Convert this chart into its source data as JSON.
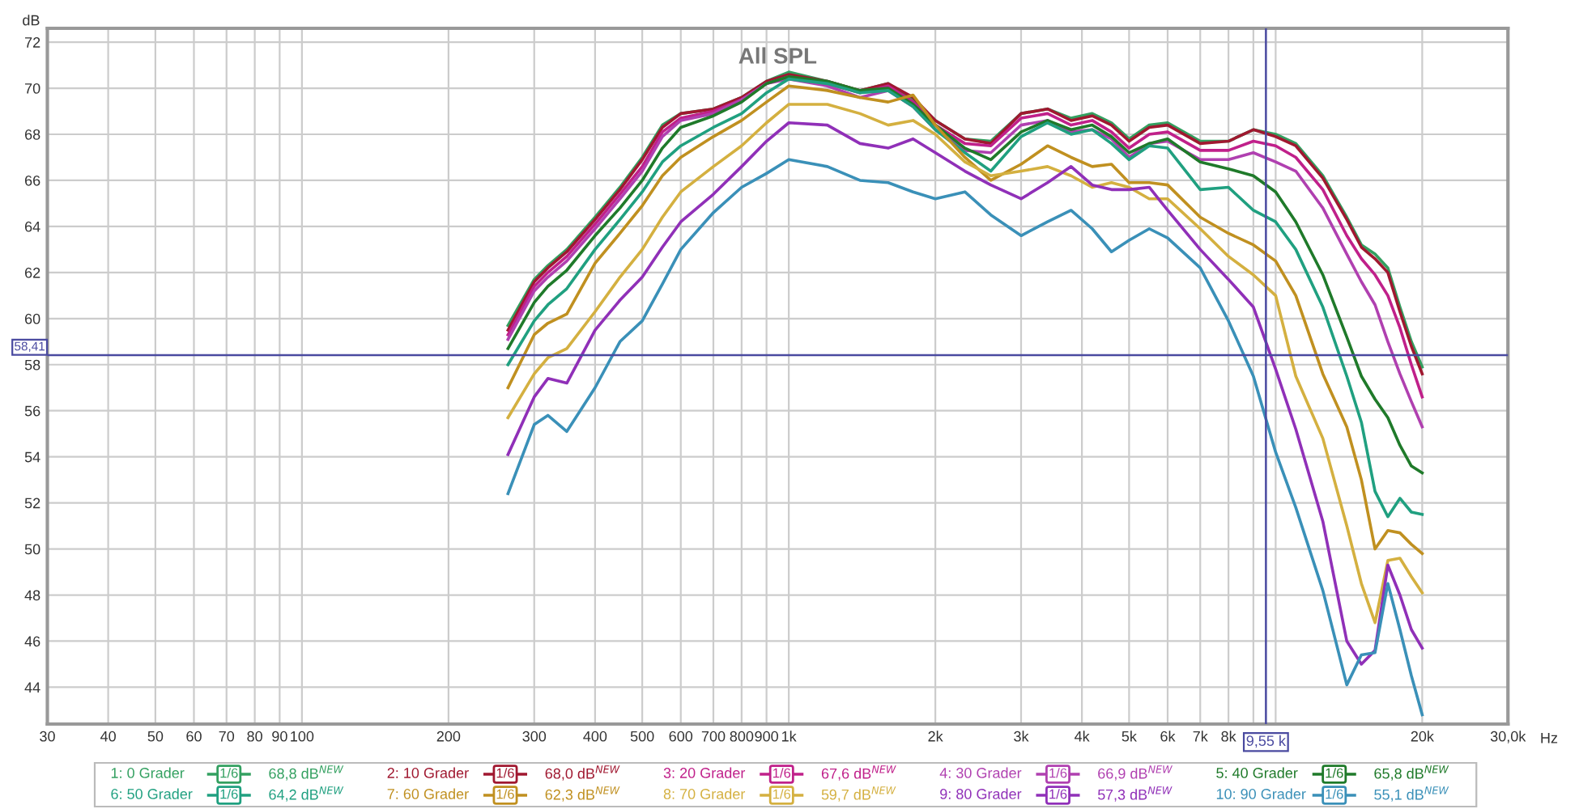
{
  "chart_data": {
    "type": "line",
    "title": "All SPL",
    "xlabel": "Hz",
    "ylabel": "dB",
    "log": "x",
    "grid": true,
    "legend": "bottom",
    "marker": "none",
    "line_style": "solid",
    "x": [
      265,
      300,
      320,
      350,
      400,
      450,
      500,
      550,
      600,
      700,
      800,
      900,
      1000,
      1200,
      1400,
      1600,
      1800,
      2000,
      2300,
      2600,
      3000,
      3400,
      3800,
      4200,
      4600,
      5000,
      5500,
      6000,
      7000,
      8000,
      9000,
      10000,
      11000,
      12500,
      14000,
      15000,
      16000,
      17000,
      18000,
      19000,
      20000
    ],
    "xlim": [
      30,
      30000
    ],
    "xticks": [
      30,
      40,
      50,
      60,
      70,
      80,
      90,
      100,
      200,
      300,
      400,
      500,
      600,
      700,
      800,
      900,
      {
        "value": 1000,
        "label": "1k"
      },
      {
        "value": 2000,
        "label": "2k"
      },
      {
        "value": 3000,
        "label": "3k"
      },
      {
        "value": 4000,
        "label": "4k"
      },
      {
        "value": 5000,
        "label": "5k"
      },
      {
        "value": 6000,
        "label": "6k"
      },
      {
        "value": 7000,
        "label": "7k"
      },
      {
        "value": 8000,
        "label": "8k"
      },
      {
        "value": 9000,
        "label": null
      },
      {
        "value": 10000,
        "label": null
      },
      {
        "value": 20000,
        "label": "20k"
      },
      {
        "value": 30000,
        "label": "30,0k"
      }
    ],
    "ylim": [
      42.4,
      72.6
    ],
    "yticks": [
      44,
      46,
      48,
      50,
      52,
      54,
      56,
      58,
      60,
      62,
      64,
      66,
      68,
      70,
      72
    ],
    "ref_lines": [
      {
        "axis": "x",
        "value": 9550,
        "label": "9,55 k",
        "color": "#4a4aa0"
      },
      {
        "axis": "y",
        "value": 58.41,
        "label": "58,41",
        "color": "#4a4aa0"
      }
    ],
    "annotations": [
      "1/6",
      "68,8 dB$^{NEW}$",
      "1/6",
      "68,0 dB$^{NEW}$",
      "1/6",
      "67,6 dB$^{NEW}$",
      "1/6",
      "66,9 dB$^{NEW}$",
      "1/6",
      "65,8 dB$^{NEW}$",
      "1/6",
      "64,2 dB$^{NEW}$",
      "1/6",
      "62,3 dB$^{NEW}$",
      "1/6",
      "59,7 dB$^{NEW}$",
      "1/6",
      "57,3 dB$^{NEW}$",
      "1/6",
      "55,1 dB$^{NEW}$"
    ],
    "series": [
      {
        "name": "1: 0 Grader",
        "color": "#33a060",
        "values": [
          59.7,
          61.7,
          62.3,
          63.0,
          64.4,
          65.7,
          67.0,
          68.4,
          68.9,
          69.1,
          69.6,
          70.3,
          70.7,
          70.3,
          69.9,
          70.2,
          69.5,
          68.6,
          67.8,
          67.7,
          68.9,
          69.1,
          68.7,
          68.9,
          68.5,
          67.8,
          68.4,
          68.5,
          67.7,
          67.7,
          68.2,
          68.0,
          67.6,
          66.2,
          64.4,
          63.2,
          62.8,
          62.2,
          60.5,
          59.0,
          57.9
        ]
      },
      {
        "name": "2: 10 Grader",
        "color": "#a01830",
        "values": [
          59.5,
          61.6,
          62.2,
          62.9,
          64.3,
          65.6,
          66.9,
          68.3,
          68.9,
          69.1,
          69.6,
          70.3,
          70.6,
          70.3,
          69.9,
          70.2,
          69.6,
          68.6,
          67.8,
          67.6,
          68.9,
          69.1,
          68.6,
          68.8,
          68.4,
          67.7,
          68.3,
          68.4,
          67.6,
          67.7,
          68.2,
          67.9,
          67.5,
          66.1,
          64.3,
          63.1,
          62.6,
          62.0,
          60.3,
          58.8,
          57.6
        ]
      },
      {
        "name": "3: 20 Grader",
        "color": "#c0208a",
        "values": [
          59.3,
          61.4,
          62.0,
          62.7,
          64.1,
          65.4,
          66.6,
          68.1,
          68.7,
          69.0,
          69.5,
          70.2,
          70.5,
          70.2,
          69.8,
          70.1,
          69.4,
          68.4,
          67.6,
          67.5,
          68.7,
          68.9,
          68.4,
          68.6,
          68.1,
          67.4,
          68.0,
          68.1,
          67.3,
          67.3,
          67.7,
          67.5,
          67.0,
          65.6,
          63.6,
          62.6,
          61.9,
          61.0,
          59.6,
          58.0,
          56.6
        ]
      },
      {
        "name": "4: 30 Grader",
        "color": "#b040b0",
        "values": [
          59.1,
          61.2,
          61.8,
          62.5,
          63.9,
          65.2,
          66.4,
          67.9,
          68.6,
          68.9,
          69.5,
          70.2,
          70.4,
          70.1,
          69.6,
          69.9,
          69.2,
          68.2,
          67.3,
          67.2,
          68.4,
          68.6,
          68.1,
          68.2,
          67.8,
          67.0,
          67.6,
          67.7,
          66.9,
          66.9,
          67.2,
          66.8,
          66.4,
          64.8,
          62.8,
          61.6,
          60.6,
          59.0,
          57.6,
          56.4,
          55.3
        ]
      },
      {
        "name": "5: 40 Grader",
        "color": "#1f7a2a",
        "values": [
          58.7,
          60.7,
          61.4,
          62.1,
          63.6,
          64.8,
          66.0,
          67.4,
          68.3,
          68.8,
          69.4,
          70.2,
          70.5,
          70.3,
          69.9,
          70.0,
          69.3,
          68.4,
          67.4,
          66.9,
          68.1,
          68.6,
          68.2,
          68.4,
          67.9,
          67.2,
          67.6,
          67.8,
          66.8,
          66.5,
          66.2,
          65.5,
          64.2,
          61.9,
          59.2,
          57.5,
          56.5,
          55.7,
          54.5,
          53.6,
          53.3
        ]
      },
      {
        "name": "6: 50 Grader",
        "color": "#20a080",
        "values": [
          58.0,
          59.9,
          60.6,
          61.3,
          63.0,
          64.3,
          65.5,
          66.8,
          67.5,
          68.3,
          68.9,
          69.8,
          70.4,
          70.2,
          69.8,
          69.9,
          69.2,
          68.2,
          67.2,
          66.4,
          67.9,
          68.5,
          68.0,
          68.2,
          67.6,
          66.9,
          67.5,
          67.4,
          65.6,
          65.7,
          64.7,
          64.2,
          63.0,
          60.5,
          57.5,
          55.5,
          52.5,
          51.4,
          52.2,
          51.6,
          51.5
        ]
      },
      {
        "name": "7: 60 Grader",
        "color": "#c09020",
        "values": [
          57.0,
          59.3,
          59.8,
          60.2,
          62.4,
          63.7,
          64.9,
          66.2,
          67.0,
          67.9,
          68.6,
          69.4,
          70.1,
          69.9,
          69.6,
          69.4,
          69.7,
          68.4,
          67.0,
          66.0,
          66.7,
          67.5,
          67.0,
          66.6,
          66.7,
          65.9,
          65.9,
          65.8,
          64.4,
          63.7,
          63.2,
          62.5,
          61.0,
          57.6,
          55.3,
          53.0,
          50.0,
          50.8,
          50.7,
          50.2,
          49.8
        ]
      },
      {
        "name": "8: 70 Grader",
        "color": "#d4b040",
        "values": [
          55.7,
          57.6,
          58.3,
          58.7,
          60.3,
          61.8,
          63.0,
          64.4,
          65.5,
          66.6,
          67.5,
          68.5,
          69.3,
          69.3,
          68.9,
          68.4,
          68.6,
          68.0,
          66.8,
          66.2,
          66.4,
          66.6,
          66.2,
          65.7,
          65.9,
          65.7,
          65.2,
          65.2,
          63.9,
          62.7,
          61.9,
          61.0,
          57.5,
          54.8,
          51.0,
          48.5,
          46.8,
          49.5,
          49.6,
          48.8,
          48.1
        ]
      },
      {
        "name": "9: 80 Grader",
        "color": "#9030b8",
        "values": [
          54.1,
          56.6,
          57.4,
          57.2,
          59.5,
          60.8,
          61.8,
          63.1,
          64.2,
          65.4,
          66.6,
          67.7,
          68.5,
          68.4,
          67.6,
          67.4,
          67.8,
          67.2,
          66.4,
          65.8,
          65.2,
          65.9,
          66.6,
          65.8,
          65.6,
          65.6,
          65.7,
          64.7,
          63.0,
          61.7,
          60.5,
          57.8,
          55.2,
          51.2,
          46.0,
          45.0,
          45.6,
          49.3,
          48.0,
          46.5,
          45.7
        ]
      },
      {
        "name": "10: 90 Grader",
        "color": "#3a90b8",
        "values": [
          52.4,
          55.4,
          55.8,
          55.1,
          57.0,
          59.0,
          59.9,
          61.5,
          63.0,
          64.6,
          65.7,
          66.3,
          66.9,
          66.6,
          66.0,
          65.9,
          65.5,
          65.2,
          65.5,
          64.5,
          63.6,
          64.2,
          64.7,
          63.9,
          62.9,
          63.4,
          63.9,
          63.5,
          62.2,
          59.9,
          57.5,
          54.2,
          51.8,
          48.2,
          44.1,
          45.4,
          45.5,
          48.5,
          46.5,
          44.5,
          42.8
        ]
      }
    ]
  }
}
